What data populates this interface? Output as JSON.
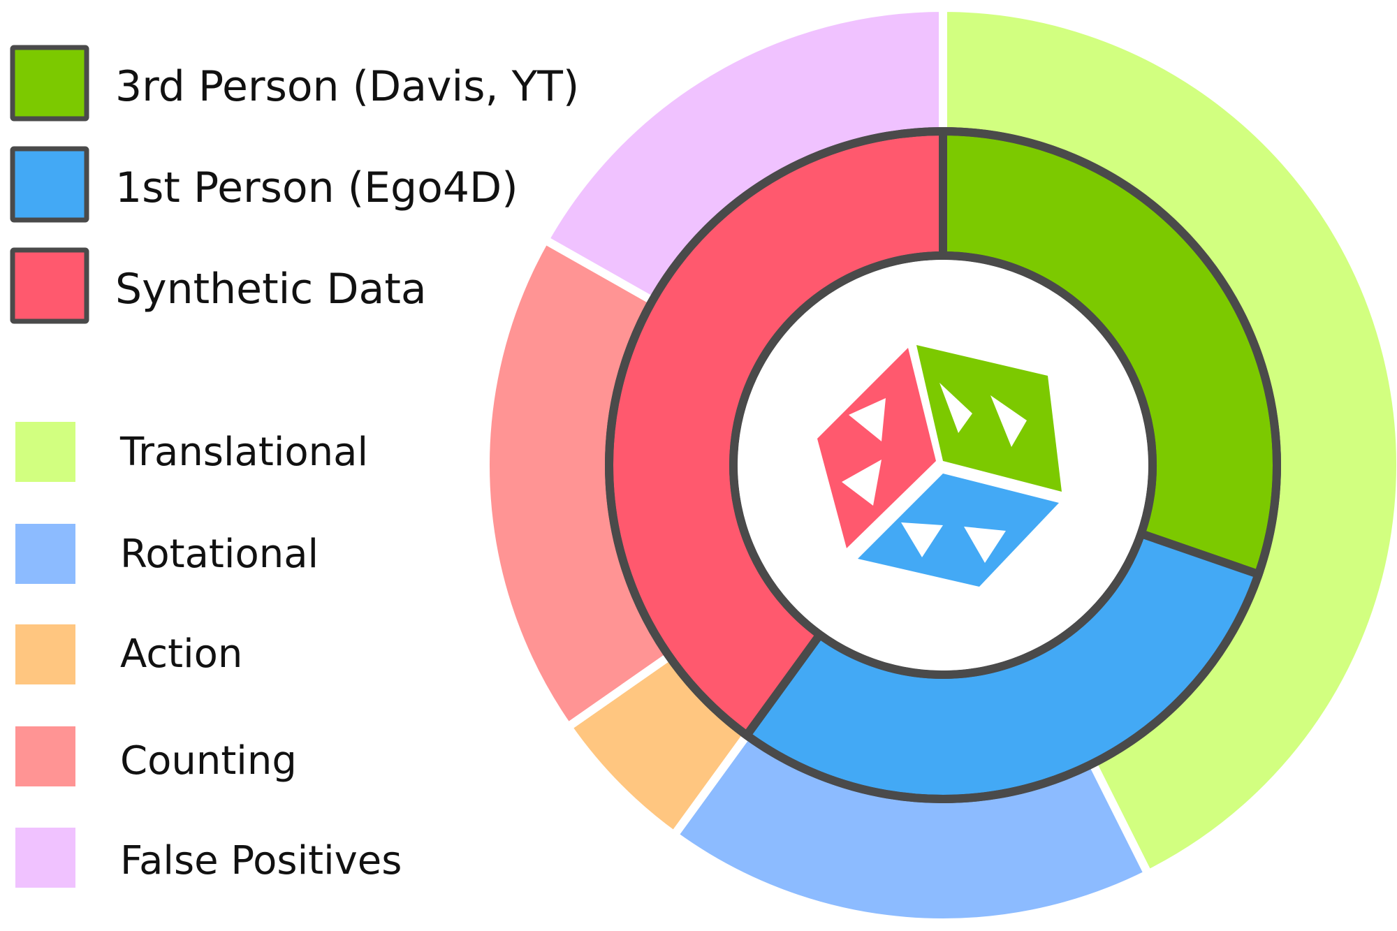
{
  "chart_data": {
    "type": "pie",
    "subtype": "nested-donut",
    "inner_ring": {
      "series_name": "",
      "categories": [
        "3rd Person (Davis, YT)",
        "1st Person (Ego4D)",
        "Synthetic Data"
      ],
      "values": [
        30.3,
        29.7,
        40.0
      ],
      "colors": [
        "#7cc900",
        "#43a9f5",
        "#ff596e"
      ],
      "legend_style": "dark-outlined-swatch"
    },
    "outer_ring": {
      "series_name": "",
      "categories": [
        "Translational",
        "Rotational",
        "Action",
        "Counting",
        "False Positives"
      ],
      "values": [
        42.6,
        17.4,
        5.3,
        17.9,
        16.8
      ],
      "colors": [
        "#d2ff80",
        "#8cbbff",
        "#ffc680",
        "#ff9494",
        "#f0c2ff"
      ],
      "legend_style": "plain-swatch"
    },
    "center_logo": "cube-arrows-logo",
    "legend_position": "left",
    "title": ""
  }
}
